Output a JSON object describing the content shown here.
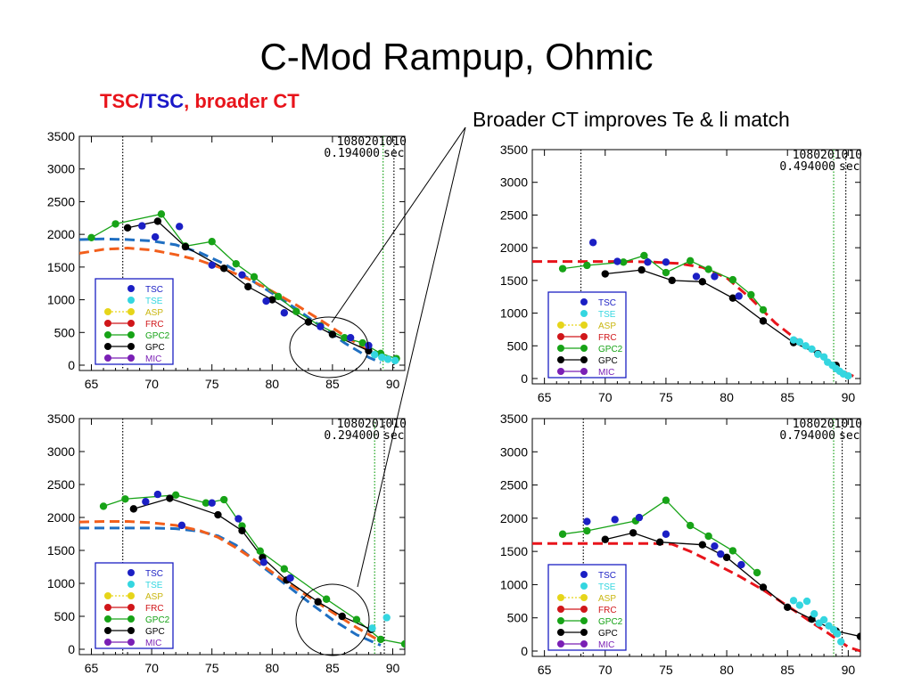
{
  "title": "C-Mod Rampup, Ohmic",
  "subtitle": {
    "part1": "TSC",
    "sep": "/",
    "part2": "TSC",
    "part3": ", broader CT"
  },
  "annotation": "Broader CT improves Te & li match",
  "colors": {
    "TSC": "#1b1fc4",
    "TSE": "#34d6e0",
    "ASP": "#e6d51a",
    "FRC": "#d0161a",
    "GPC2": "#17a317",
    "GPC": "#000000",
    "MIC": "#7a1fb5",
    "model_red": "#e8141b",
    "model_orange": "#f25f1c",
    "model_blue": "#1f6fc2"
  },
  "chart_data": [
    {
      "type": "scatter",
      "stamp1": "1080201010",
      "stamp2": "0.194000",
      "stamp_unit": "sec",
      "xlim": [
        64,
        91
      ],
      "ylim": [
        0,
        3500
      ],
      "xticks": [
        65,
        70,
        75,
        80,
        85,
        90
      ],
      "yticks": [
        0,
        500,
        1000,
        1500,
        2000,
        2500,
        3000,
        3500
      ],
      "vlines": [
        {
          "x": 67.6,
          "color": "#000000"
        },
        {
          "x": 89.2,
          "color": "#17a317"
        },
        {
          "x": 90.1,
          "color": "#000000"
        }
      ],
      "legend": [
        "TSC",
        "TSE",
        "ASP",
        "FRC",
        "GPC2",
        "GPC",
        "MIC"
      ],
      "model_curves": [
        {
          "color": "#1f6fc2",
          "x": [
            64,
            66,
            68,
            70,
            72,
            74,
            76,
            78,
            80,
            82,
            84,
            86,
            88,
            89
          ],
          "y": [
            1920,
            1930,
            1920,
            1900,
            1840,
            1720,
            1550,
            1330,
            1100,
            860,
            600,
            340,
            120,
            40
          ]
        },
        {
          "color": "#f25f1c",
          "x": [
            64,
            66,
            68,
            70,
            72,
            74,
            76,
            78,
            80,
            82,
            84,
            86,
            88,
            89.5
          ],
          "y": [
            1710,
            1770,
            1790,
            1760,
            1690,
            1600,
            1470,
            1320,
            1130,
            920,
            690,
            450,
            220,
            100
          ]
        }
      ],
      "series": [
        {
          "name": "GPC2",
          "line": true,
          "x": [
            65,
            67,
            70.8,
            72.8,
            75,
            77,
            78.5,
            80.5,
            82,
            84,
            86,
            87.5,
            89,
            90.3
          ],
          "y": [
            1950,
            2160,
            2310,
            1820,
            1890,
            1550,
            1350,
            1050,
            820,
            600,
            420,
            340,
            180,
            100
          ]
        },
        {
          "name": "GPC",
          "line": true,
          "x": [
            68,
            70.5,
            72.8,
            76,
            78,
            80,
            83,
            85,
            88
          ],
          "y": [
            2100,
            2200,
            1810,
            1480,
            1200,
            1000,
            660,
            470,
            220
          ]
        },
        {
          "name": "TSC",
          "line": false,
          "x": [
            69.2,
            70.3,
            72.3,
            75,
            77.5,
            79.5,
            81,
            84,
            86.5,
            88
          ],
          "y": [
            2130,
            1960,
            2120,
            1530,
            1380,
            980,
            800,
            590,
            420,
            300
          ]
        },
        {
          "name": "TSE",
          "line": false,
          "x": [
            88.5,
            89.1,
            89.6,
            90.2
          ],
          "y": [
            160,
            120,
            90,
            70
          ]
        }
      ]
    },
    {
      "type": "scatter",
      "stamp1": "1080201010",
      "stamp2": "0.494000",
      "stamp_unit": "sec",
      "xlim": [
        64,
        91
      ],
      "ylim": [
        0,
        3500
      ],
      "xticks": [
        65,
        70,
        75,
        80,
        85,
        90
      ],
      "yticks": [
        0,
        500,
        1000,
        1500,
        2000,
        2500,
        3000,
        3500
      ],
      "vlines": [
        {
          "x": 68,
          "color": "#000000"
        },
        {
          "x": 88.8,
          "color": "#17a317"
        },
        {
          "x": 89.8,
          "color": "#000000"
        }
      ],
      "legend": [
        "TSC",
        "TSE",
        "ASP",
        "FRC",
        "GPC2",
        "GPC",
        "MIC"
      ],
      "model_curves": [
        {
          "color": "#e8141b",
          "x": [
            64,
            66,
            68,
            70,
            72,
            74,
            76,
            78,
            80,
            82,
            84,
            86,
            87.5,
            89,
            90.5
          ],
          "y": [
            1790,
            1790,
            1790,
            1790,
            1790,
            1780,
            1760,
            1700,
            1540,
            1220,
            850,
            560,
            380,
            150,
            30
          ]
        }
      ],
      "series": [
        {
          "name": "GPC2",
          "line": true,
          "x": [
            66.5,
            68.5,
            71.5,
            73.2,
            75,
            77,
            78.5,
            80.5,
            82,
            83
          ],
          "y": [
            1680,
            1730,
            1780,
            1880,
            1620,
            1800,
            1670,
            1510,
            1280,
            1050
          ]
        },
        {
          "name": "GPC",
          "line": true,
          "x": [
            70,
            73,
            75.5,
            78,
            80.5,
            83,
            85.5,
            87.5,
            89
          ],
          "y": [
            1600,
            1660,
            1500,
            1480,
            1230,
            880,
            550,
            380,
            200
          ]
        },
        {
          "name": "TSC",
          "line": false,
          "x": [
            69,
            71,
            73.5,
            75,
            77.5,
            79,
            81
          ],
          "y": [
            2080,
            1790,
            1780,
            1780,
            1560,
            1560,
            1260
          ]
        },
        {
          "name": "TSE",
          "line": false,
          "x": [
            85.5,
            86,
            86.5,
            87,
            87.5,
            88,
            88.3,
            88.7,
            89,
            89.3,
            89.6,
            90
          ],
          "y": [
            590,
            560,
            500,
            450,
            370,
            330,
            250,
            200,
            150,
            110,
            70,
            40
          ]
        }
      ]
    },
    {
      "type": "scatter",
      "stamp1": "1080201010",
      "stamp2": "0.294000",
      "stamp_unit": "sec",
      "xlim": [
        64,
        91
      ],
      "ylim": [
        0,
        3500
      ],
      "xticks": [
        65,
        70,
        75,
        80,
        85,
        90
      ],
      "yticks": [
        0,
        500,
        1000,
        1500,
        2000,
        2500,
        3000,
        3500
      ],
      "vlines": [
        {
          "x": 67.6,
          "color": "#000000"
        },
        {
          "x": 88.5,
          "color": "#17a317"
        },
        {
          "x": 89.3,
          "color": "#000000"
        }
      ],
      "legend": [
        "TSC",
        "TSE",
        "ASP",
        "FRC",
        "GPC2",
        "GPC",
        "MIC"
      ],
      "model_curves": [
        {
          "color": "#1f6fc2",
          "x": [
            64,
            66,
            68,
            70,
            72,
            74,
            75.5,
            77,
            79,
            81,
            83,
            85,
            87,
            89
          ],
          "y": [
            1840,
            1840,
            1840,
            1840,
            1830,
            1790,
            1720,
            1580,
            1280,
            1000,
            720,
            450,
            220,
            60
          ]
        },
        {
          "color": "#f25f1c",
          "x": [
            64,
            66,
            68,
            70,
            72,
            74,
            75.5,
            77,
            79,
            81,
            83,
            85,
            87,
            89
          ],
          "y": [
            1930,
            1940,
            1940,
            1920,
            1880,
            1800,
            1700,
            1540,
            1300,
            1040,
            800,
            560,
            330,
            120
          ]
        }
      ],
      "series": [
        {
          "name": "GPC2",
          "line": true,
          "x": [
            66,
            67.8,
            72,
            74.5,
            76,
            77.5,
            79,
            81,
            84.5,
            87,
            89,
            91
          ],
          "y": [
            2170,
            2280,
            2340,
            2220,
            2270,
            1870,
            1490,
            1220,
            760,
            450,
            150,
            80
          ]
        },
        {
          "name": "GPC",
          "line": true,
          "x": [
            68.5,
            71.5,
            75.5,
            77.5,
            79.2,
            81.2,
            83.8,
            85.8,
            88.2
          ],
          "y": [
            2130,
            2290,
            2040,
            1800,
            1390,
            1050,
            720,
            500,
            300
          ]
        },
        {
          "name": "TSC",
          "line": false,
          "x": [
            69.5,
            70.5,
            72.5,
            75,
            77.2,
            79.3,
            81.5
          ],
          "y": [
            2240,
            2350,
            1880,
            2220,
            1980,
            1320,
            1080
          ]
        },
        {
          "name": "TSE",
          "line": false,
          "x": [
            88.3,
            89.5
          ],
          "y": [
            320,
            480
          ]
        }
      ]
    },
    {
      "type": "scatter",
      "stamp1": "1080201010",
      "stamp2": "0.794000",
      "stamp_unit": "sec",
      "xlim": [
        64,
        91
      ],
      "ylim": [
        0,
        3500
      ],
      "xticks": [
        65,
        70,
        75,
        80,
        85,
        90
      ],
      "yticks": [
        0,
        500,
        1000,
        1500,
        2000,
        2500,
        3000,
        3500
      ],
      "vlines": [
        {
          "x": 68.2,
          "color": "#000000"
        },
        {
          "x": 88.8,
          "color": "#17a317"
        },
        {
          "x": 89.5,
          "color": "#000000"
        }
      ],
      "legend": [
        "TSC",
        "TSE",
        "ASP",
        "FRC",
        "GPC2",
        "GPC",
        "MIC"
      ],
      "model_curves": [
        {
          "color": "#e8141b",
          "x": [
            64,
            66,
            68,
            70,
            72,
            74,
            75.5,
            77,
            79,
            81,
            83,
            85,
            87,
            88.5,
            90,
            91
          ],
          "y": [
            1620,
            1620,
            1620,
            1620,
            1620,
            1620,
            1610,
            1500,
            1320,
            1130,
            920,
            680,
            430,
            250,
            60,
            0
          ]
        }
      ],
      "series": [
        {
          "name": "GPC2",
          "line": true,
          "x": [
            66.5,
            68.5,
            72.5,
            75,
            77,
            78.5,
            80.5,
            82.5
          ],
          "y": [
            1760,
            1810,
            1960,
            2270,
            1890,
            1730,
            1510,
            1180
          ]
        },
        {
          "name": "GPC",
          "line": true,
          "x": [
            70,
            72.3,
            74.5,
            78,
            80,
            83,
            85,
            87,
            89,
            91
          ],
          "y": [
            1680,
            1780,
            1640,
            1600,
            1410,
            960,
            660,
            480,
            300,
            220
          ]
        },
        {
          "name": "TSC",
          "line": false,
          "x": [
            68.5,
            70.8,
            72.8,
            75,
            79,
            79.5,
            81.2
          ],
          "y": [
            1950,
            1980,
            2010,
            1760,
            1580,
            1460,
            1300
          ]
        },
        {
          "name": "TSE",
          "line": false,
          "x": [
            85.5,
            86,
            86.6,
            87.2,
            87.6,
            88,
            88.4,
            88.8,
            89.1,
            89.4
          ],
          "y": [
            760,
            690,
            750,
            560,
            420,
            470,
            380,
            320,
            260,
            140
          ]
        }
      ]
    }
  ]
}
